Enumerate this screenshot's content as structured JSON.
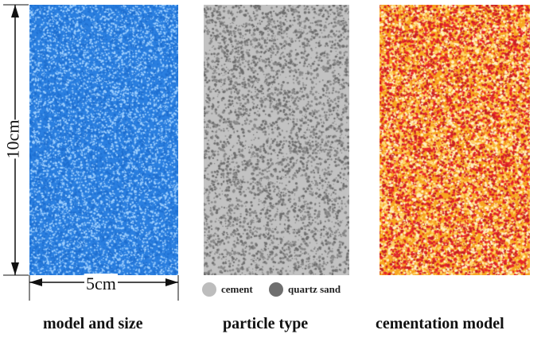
{
  "panels": {
    "model_and_size": {
      "caption": "model and size",
      "height_label": "10cm",
      "width_label": "5cm",
      "base_color": "#2a7fe0",
      "speck_color": "#9fd0ff"
    },
    "particle_type": {
      "caption": "particle type",
      "base_color": "#c2c2c2",
      "speck_color": "#6e6e6e",
      "legend": [
        {
          "label": "cement",
          "color": "#bdbdbd"
        },
        {
          "label": "quartz sand",
          "color": "#6f6f6f"
        }
      ]
    },
    "cementation_model": {
      "caption": "cementation model",
      "base_color": "#f7a51f",
      "speck_colors": [
        "#e8232a",
        "#ffd66b",
        "#fff2c4",
        "#c81e26"
      ]
    }
  }
}
